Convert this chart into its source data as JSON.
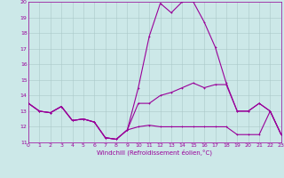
{
  "xlabel": "Windchill (Refroidissement éolien,°C)",
  "xlim": [
    0,
    23
  ],
  "ylim": [
    11,
    20
  ],
  "yticks": [
    11,
    12,
    13,
    14,
    15,
    16,
    17,
    18,
    19,
    20
  ],
  "xticks": [
    0,
    1,
    2,
    3,
    4,
    5,
    6,
    7,
    8,
    9,
    10,
    11,
    12,
    13,
    14,
    15,
    16,
    17,
    18,
    19,
    20,
    21,
    22,
    23
  ],
  "background_color": "#cce8e8",
  "line_color": "#990099",
  "grid_color": "#aac8c8",
  "line1": [
    13.5,
    13.0,
    12.9,
    13.3,
    12.4,
    12.5,
    12.3,
    11.3,
    11.2,
    11.8,
    12.0,
    12.1,
    12.0,
    12.0,
    12.0,
    12.0,
    12.0,
    12.0,
    12.0,
    11.5,
    11.5,
    11.5,
    13.0,
    11.5
  ],
  "line2": [
    13.5,
    13.0,
    12.9,
    13.3,
    12.4,
    12.5,
    12.3,
    11.3,
    11.2,
    11.8,
    13.5,
    13.5,
    14.0,
    14.2,
    14.5,
    14.8,
    14.5,
    14.7,
    14.7,
    13.0,
    13.0,
    13.5,
    13.0,
    11.5
  ],
  "line3": [
    13.5,
    13.0,
    12.9,
    13.3,
    12.4,
    12.5,
    12.3,
    11.3,
    11.2,
    11.8,
    14.5,
    17.8,
    19.9,
    19.3,
    20.0,
    20.0,
    18.7,
    17.1,
    14.8,
    13.0,
    13.0,
    13.5,
    13.0,
    11.5
  ]
}
